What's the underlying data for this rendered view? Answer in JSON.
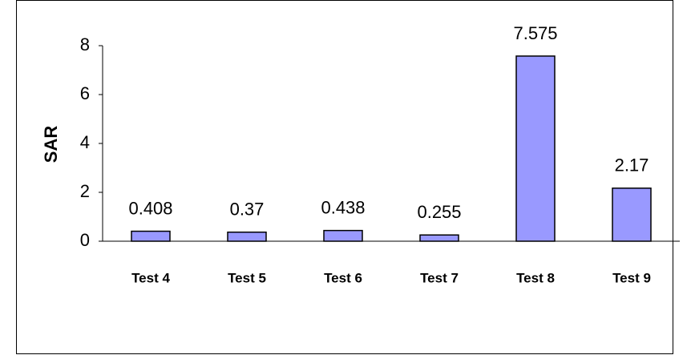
{
  "chart_data": {
    "type": "bar",
    "y_label": "SAR",
    "categories": [
      "Test 4",
      "Test 5",
      "Test 6",
      "Test 7",
      "Test 8",
      "Test 9"
    ],
    "values": [
      0.408,
      0.37,
      0.438,
      0.255,
      7.575,
      2.17
    ],
    "color": "#9999ff",
    "ylim": [
      0,
      8
    ],
    "yticks": [
      0,
      2,
      4,
      6,
      8
    ],
    "grid": false
  }
}
